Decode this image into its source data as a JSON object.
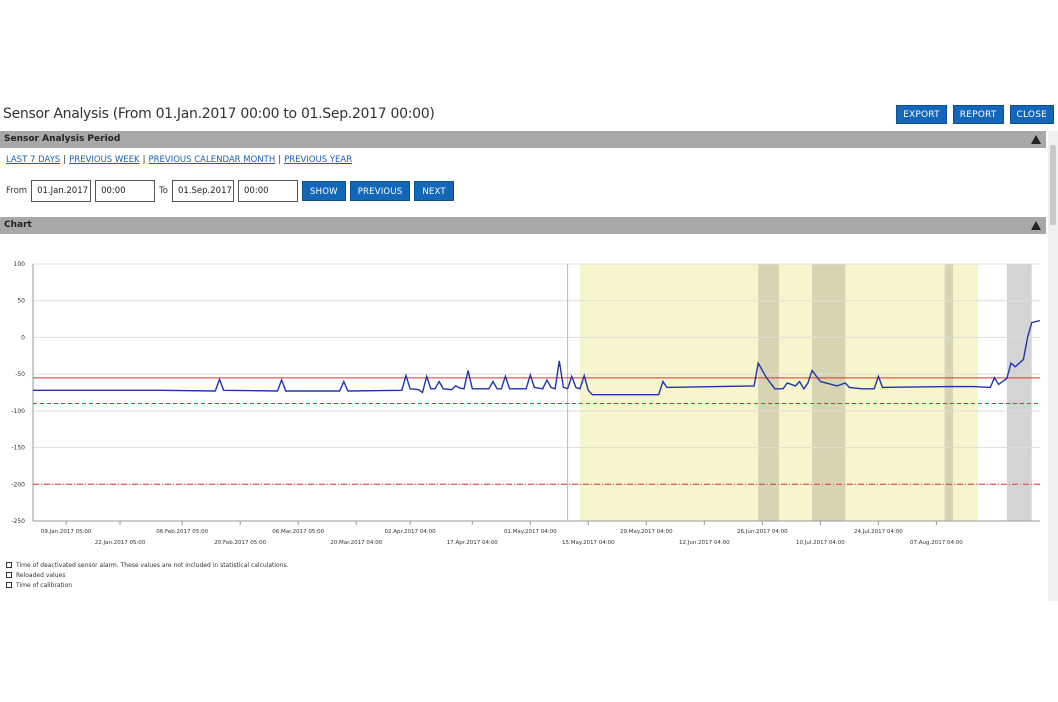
{
  "page": {
    "title": "Sensor Analysis (From 01.Jan.2017 00:00 to 01.Sep.2017 00:00)",
    "buttons": {
      "export": "EXPORT",
      "report": "REPORT",
      "close": "CLOSE"
    }
  },
  "period_section": {
    "header": "Sensor Analysis Period",
    "quick_links": [
      "LAST 7 DAYS",
      "PREVIOUS WEEK",
      "PREVIOUS CALENDAR MONTH",
      "PREVIOUS YEAR"
    ],
    "from_label": "From",
    "from_date": "01.Jan.2017",
    "from_time": "00:00",
    "to_label": "To",
    "to_date": "01.Sep.2017",
    "to_time": "00:00",
    "show_label": "SHOW",
    "previous_label": "PREVIOUS",
    "next_label": "NEXT"
  },
  "chart_section": {
    "header": "Chart"
  },
  "legend": {
    "deactivated": "Time of deactivated sensor alarm. These values are not included in statistical calculations.",
    "reloaded": "Reloaded values",
    "calibration": "Time of calibration"
  },
  "colors": {
    "series": "#2233aa",
    "limit": "#dd3333",
    "deactivated_region": "#f7f5cc",
    "reloaded_region": "#d6d4b2",
    "calibration_region": "#d4d4d4",
    "button": "#1466b8"
  },
  "chart_data": {
    "type": "line",
    "ylim": [
      -250,
      100
    ],
    "yticks": [
      100,
      50,
      0,
      -50,
      -100,
      -150,
      -200,
      -250
    ],
    "xlim": [
      "2017-01-01",
      "2017-09-01"
    ],
    "xticks_upper": [
      "09.Jan.2017 05:00",
      "06.Feb.2017 05:00",
      "06.Mar.2017 05:00",
      "02.Apr.2017 04:00",
      "01.May.2017 04:00",
      "29.May.2017 04:00",
      "26.Jun.2017 04:00",
      "24.Jul.2017 04:00"
    ],
    "xticks_lower": [
      "22.Jan.2017 05:00",
      "20.Feb.2017 05:00",
      "20.Mar.2017 04:00",
      "17.Apr.2017 04:00",
      "15.May.2017 04:00",
      "12.Jun.2017 04:00",
      "10.Jul.2017 04:00",
      "07.Aug.2017 04:00"
    ],
    "limits": [
      {
        "value": -55,
        "style": "solid"
      },
      {
        "value": -90,
        "style": "dashed"
      },
      {
        "value": -200,
        "style": "dashdot"
      }
    ],
    "marker_date": "2017-05-10",
    "deactivated_periods": [
      [
        "2017-05-13",
        "2017-08-17"
      ]
    ],
    "reloaded_periods": [
      [
        "2017-06-25",
        "2017-06-30"
      ],
      [
        "2017-07-08",
        "2017-07-16"
      ],
      [
        "2017-08-09",
        "2017-08-11"
      ]
    ],
    "calibration_periods": [
      [
        "2017-08-24",
        "2017-08-30"
      ]
    ],
    "series": [
      {
        "points": [
          [
            "2017-01-01",
            -72
          ],
          [
            "2017-01-20",
            -72
          ],
          [
            "2017-02-01",
            -72
          ],
          [
            "2017-02-14",
            -73
          ],
          [
            "2017-02-15",
            -57
          ],
          [
            "2017-02-16",
            -72
          ],
          [
            "2017-03-01",
            -73
          ],
          [
            "2017-03-02",
            -58
          ],
          [
            "2017-03-03",
            -73
          ],
          [
            "2017-03-16",
            -73
          ],
          [
            "2017-03-17",
            -60
          ],
          [
            "2017-03-18",
            -73
          ],
          [
            "2017-03-31",
            -72
          ],
          [
            "2017-04-01",
            -52
          ],
          [
            "2017-04-02",
            -70
          ],
          [
            "2017-04-04",
            -71
          ],
          [
            "2017-04-05",
            -75
          ],
          [
            "2017-04-06",
            -53
          ],
          [
            "2017-04-07",
            -70
          ],
          [
            "2017-04-08",
            -70
          ],
          [
            "2017-04-09",
            -60
          ],
          [
            "2017-04-10",
            -70
          ],
          [
            "2017-04-12",
            -71
          ],
          [
            "2017-04-13",
            -66
          ],
          [
            "2017-04-14",
            -69
          ],
          [
            "2017-04-15",
            -70
          ],
          [
            "2017-04-16",
            -45
          ],
          [
            "2017-04-17",
            -70
          ],
          [
            "2017-04-21",
            -70
          ],
          [
            "2017-04-22",
            -60
          ],
          [
            "2017-04-23",
            -70
          ],
          [
            "2017-04-24",
            -70
          ],
          [
            "2017-04-25",
            -53
          ],
          [
            "2017-04-26",
            -70
          ],
          [
            "2017-04-30",
            -70
          ],
          [
            "2017-05-01",
            -51
          ],
          [
            "2017-05-02",
            -68
          ],
          [
            "2017-05-04",
            -70
          ],
          [
            "2017-05-05",
            -58
          ],
          [
            "2017-05-06",
            -68
          ],
          [
            "2017-05-07",
            -70
          ],
          [
            "2017-05-08",
            -32
          ],
          [
            "2017-05-09",
            -68
          ],
          [
            "2017-05-10",
            -70
          ],
          [
            "2017-05-11",
            -53
          ],
          [
            "2017-05-12",
            -68
          ],
          [
            "2017-05-13",
            -70
          ],
          [
            "2017-05-14",
            -52
          ],
          [
            "2017-05-15",
            -72
          ],
          [
            "2017-05-16",
            -78
          ],
          [
            "2017-05-20",
            -78
          ],
          [
            "2017-06-01",
            -78
          ],
          [
            "2017-06-02",
            -60
          ],
          [
            "2017-06-03",
            -68
          ],
          [
            "2017-06-15",
            -67
          ],
          [
            "2017-06-24",
            -66
          ],
          [
            "2017-06-25",
            -35
          ],
          [
            "2017-06-27",
            -55
          ],
          [
            "2017-06-29",
            -70
          ],
          [
            "2017-07-01",
            -70
          ],
          [
            "2017-07-02",
            -62
          ],
          [
            "2017-07-04",
            -66
          ],
          [
            "2017-07-05",
            -60
          ],
          [
            "2017-07-06",
            -70
          ],
          [
            "2017-07-07",
            -62
          ],
          [
            "2017-07-08",
            -45
          ],
          [
            "2017-07-10",
            -60
          ],
          [
            "2017-07-12",
            -63
          ],
          [
            "2017-07-14",
            -66
          ],
          [
            "2017-07-16",
            -62
          ],
          [
            "2017-07-17",
            -68
          ],
          [
            "2017-07-20",
            -70
          ],
          [
            "2017-07-23",
            -70
          ],
          [
            "2017-07-24",
            -53
          ],
          [
            "2017-07-25",
            -68
          ],
          [
            "2017-08-10",
            -67
          ],
          [
            "2017-08-16",
            -67
          ],
          [
            "2017-08-20",
            -68
          ],
          [
            "2017-08-21",
            -55
          ],
          [
            "2017-08-22",
            -64
          ],
          [
            "2017-08-24",
            -56
          ],
          [
            "2017-08-25",
            -35
          ],
          [
            "2017-08-26",
            -40
          ],
          [
            "2017-08-28",
            -30
          ],
          [
            "2017-08-29",
            0
          ],
          [
            "2017-08-30",
            20
          ],
          [
            "2017-09-01",
            23
          ]
        ]
      }
    ]
  }
}
